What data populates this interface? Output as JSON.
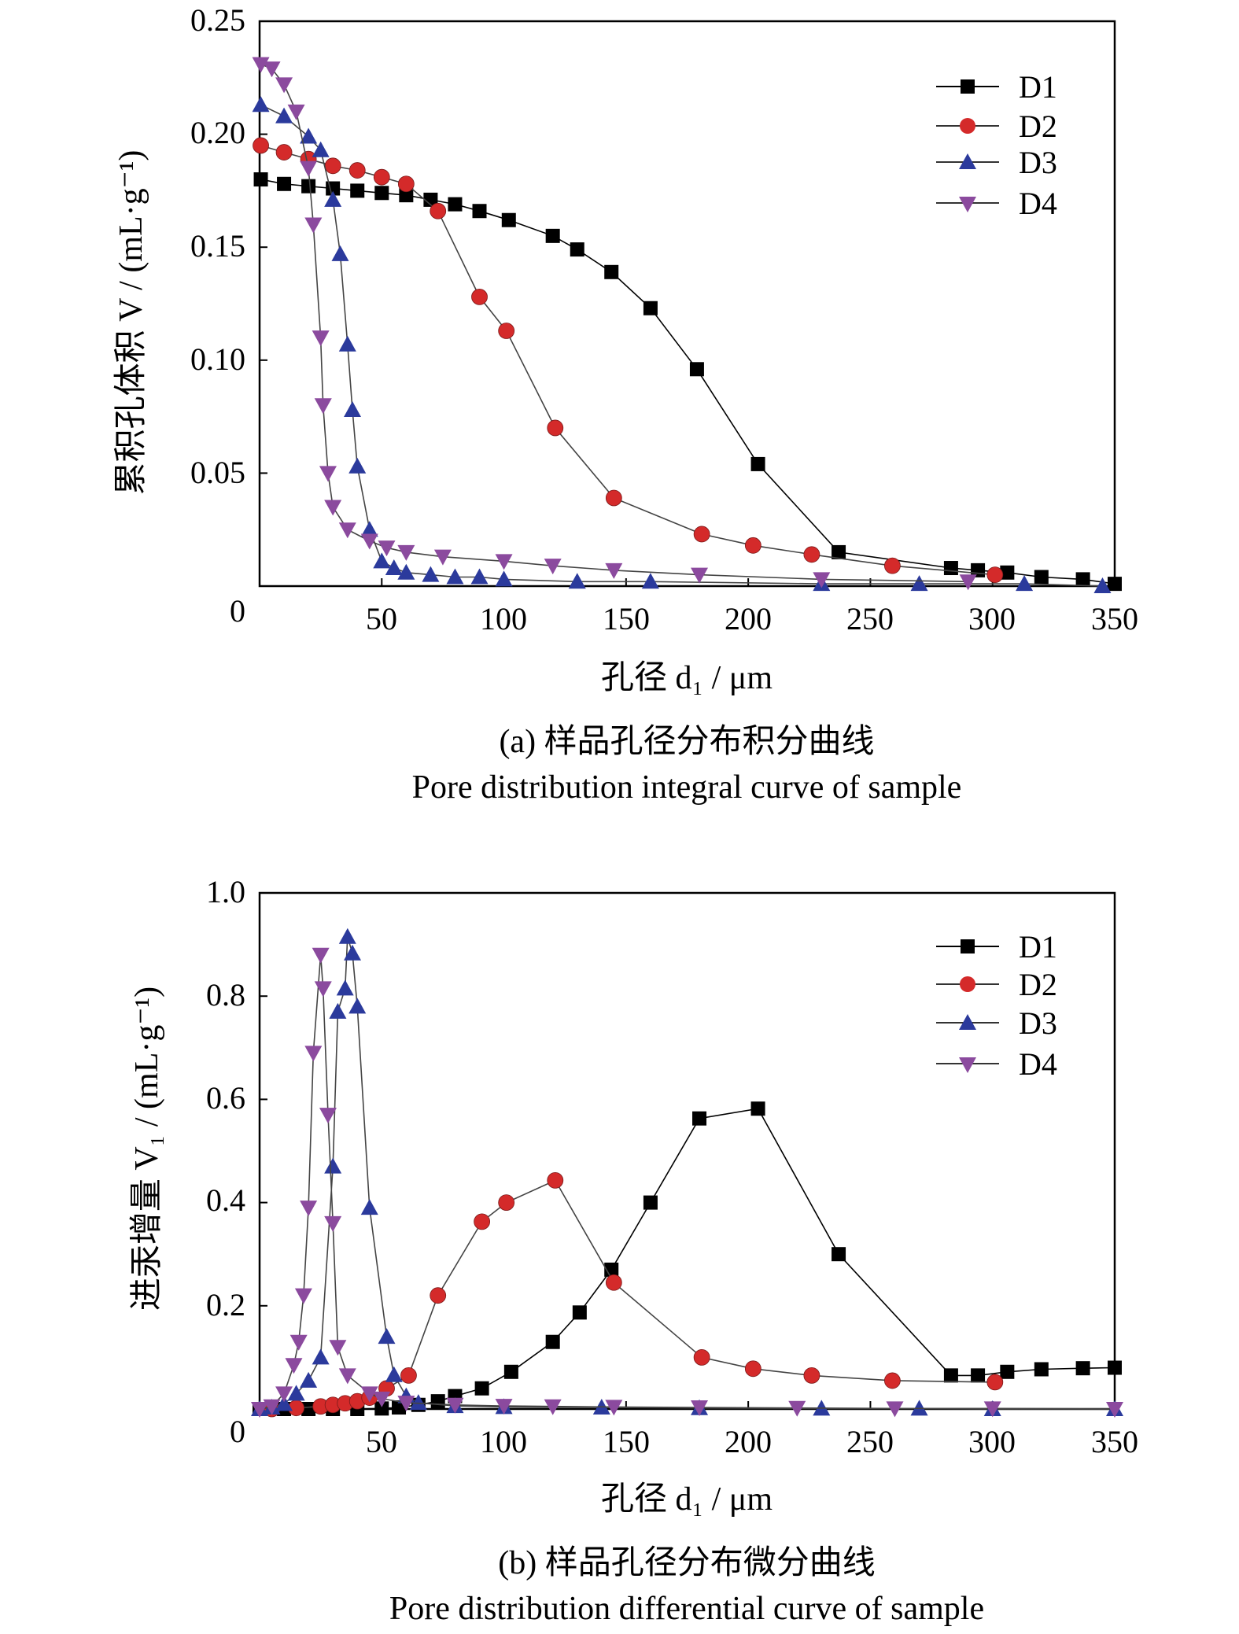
{
  "chart_data": [
    {
      "type": "line",
      "title": "",
      "caption_cn": "(a) 样品孔径分布积分曲线",
      "caption_en": "Pore distribution integral curve of sample",
      "xlabel": "孔径 d₁ / μm",
      "ylabel": "累积孔体积 V / (mL·g⁻¹)",
      "xlim": [
        0,
        350
      ],
      "ylim": [
        0,
        0.25
      ],
      "xticks": [
        "50",
        "100",
        "150",
        "200",
        "250",
        "300",
        "350"
      ],
      "yticks": [
        "0.05",
        "0.10",
        "0.15",
        "0.20",
        "0.25"
      ],
      "zero_label": "0",
      "legend_position": "top-right",
      "series": [
        {
          "name": "D1",
          "color": "#000000",
          "marker": "square",
          "x": [
            0.5,
            10,
            20,
            30,
            40,
            50,
            60,
            70,
            80,
            90,
            102,
            120,
            130,
            144,
            160,
            179,
            204,
            237,
            283,
            294,
            306,
            320,
            337,
            350
          ],
          "y": [
            0.18,
            0.178,
            0.177,
            0.176,
            0.175,
            0.174,
            0.173,
            0.171,
            0.169,
            0.166,
            0.162,
            0.155,
            0.149,
            0.139,
            0.123,
            0.096,
            0.054,
            0.015,
            0.008,
            0.007,
            0.006,
            0.004,
            0.003,
            0.001
          ]
        },
        {
          "name": "D2",
          "color": "#d42a2a",
          "marker": "circle",
          "x": [
            0.5,
            10,
            20,
            30,
            40,
            50,
            60,
            73,
            90,
            101,
            121,
            145,
            181,
            202,
            226,
            259,
            301
          ],
          "y": [
            0.195,
            0.192,
            0.189,
            0.186,
            0.184,
            0.181,
            0.178,
            0.166,
            0.128,
            0.113,
            0.07,
            0.039,
            0.023,
            0.018,
            0.014,
            0.009,
            0.005
          ]
        },
        {
          "name": "D3",
          "color": "#2b3a9c",
          "marker": "triangle-up",
          "x": [
            0.5,
            10,
            20,
            25,
            30,
            33,
            36,
            38,
            40,
            45,
            50,
            55,
            60,
            70,
            80,
            90,
            100,
            130,
            160,
            230,
            270,
            313,
            345
          ],
          "y": [
            0.213,
            0.208,
            0.199,
            0.193,
            0.171,
            0.147,
            0.107,
            0.078,
            0.053,
            0.025,
            0.011,
            0.008,
            0.006,
            0.005,
            0.004,
            0.004,
            0.003,
            0.002,
            0.002,
            0.001,
            0.001,
            0.001,
            0.0
          ]
        },
        {
          "name": "D4",
          "color": "#8b4a9e",
          "marker": "triangle-down",
          "x": [
            0.5,
            5,
            10,
            15,
            20,
            22,
            25,
            26,
            28,
            30,
            36,
            45,
            52,
            60,
            75,
            100,
            120,
            145,
            180,
            230,
            290
          ],
          "y": [
            0.231,
            0.229,
            0.222,
            0.21,
            0.185,
            0.16,
            0.11,
            0.08,
            0.05,
            0.035,
            0.025,
            0.02,
            0.017,
            0.015,
            0.013,
            0.011,
            0.009,
            0.007,
            0.005,
            0.003,
            0.002
          ]
        }
      ]
    },
    {
      "type": "line",
      "title": "",
      "caption_cn": "(b) 样品孔径分布微分曲线",
      "caption_en": "Pore distribution differential curve of sample",
      "xlabel": "孔径 d₁ / μm",
      "ylabel": "进汞增量 V₁ / (mL·g⁻¹)",
      "xlim": [
        0,
        350
      ],
      "ylim": [
        0,
        1.0
      ],
      "xticks": [
        "50",
        "100",
        "150",
        "200",
        "250",
        "300",
        "350"
      ],
      "yticks": [
        "0.2",
        "0.4",
        "0.6",
        "0.8",
        "1.0"
      ],
      "zero_label": "0",
      "legend_position": "top-right",
      "series": [
        {
          "name": "D1",
          "color": "#000000",
          "marker": "square",
          "x": [
            0,
            10,
            20,
            30,
            40,
            50,
            57,
            65,
            73,
            80,
            91,
            103,
            120,
            131,
            144,
            160,
            180,
            204,
            237,
            283,
            294,
            306,
            320,
            337,
            350
          ],
          "y": [
            0.0,
            0.0,
            0.0,
            0.0,
            0.0,
            0.001,
            0.003,
            0.008,
            0.015,
            0.025,
            0.04,
            0.072,
            0.13,
            0.187,
            0.27,
            0.4,
            0.563,
            0.582,
            0.3,
            0.065,
            0.065,
            0.072,
            0.077,
            0.079,
            0.08
          ]
        },
        {
          "name": "D2",
          "color": "#d42a2a",
          "marker": "circle",
          "x": [
            5,
            15,
            25,
            30,
            35,
            40,
            45,
            52,
            61,
            73,
            91,
            101,
            121,
            145,
            181,
            202,
            226,
            259,
            301
          ],
          "y": [
            0.0,
            0.002,
            0.005,
            0.008,
            0.011,
            0.015,
            0.022,
            0.04,
            0.065,
            0.22,
            0.363,
            0.4,
            0.443,
            0.245,
            0.1,
            0.078,
            0.065,
            0.055,
            0.052
          ]
        },
        {
          "name": "D3",
          "color": "#2b3a9c",
          "marker": "triangle-up",
          "x": [
            0,
            5,
            10,
            15,
            20,
            25,
            30,
            32,
            35,
            36,
            38,
            40,
            45,
            52,
            55,
            60,
            65,
            80,
            100,
            140,
            180,
            230,
            270,
            300,
            350
          ],
          "y": [
            0.0,
            0.003,
            0.01,
            0.03,
            0.055,
            0.1,
            0.47,
            0.77,
            0.815,
            0.915,
            0.883,
            0.78,
            0.39,
            0.14,
            0.066,
            0.025,
            0.012,
            0.006,
            0.004,
            0.003,
            0.002,
            0.001,
            0.001,
            0.0,
            0.0
          ]
        },
        {
          "name": "D4",
          "color": "#8b4a9e",
          "marker": "triangle-down",
          "x": [
            0,
            5,
            10,
            14,
            16,
            18,
            20,
            22,
            25,
            26,
            28,
            30,
            32,
            36,
            45,
            50,
            60,
            80,
            100,
            120,
            145,
            180,
            220,
            260,
            300,
            350
          ],
          "y": [
            0.0,
            0.005,
            0.03,
            0.085,
            0.13,
            0.22,
            0.39,
            0.69,
            0.88,
            0.815,
            0.57,
            0.36,
            0.12,
            0.065,
            0.03,
            0.02,
            0.012,
            0.008,
            0.006,
            0.005,
            0.004,
            0.003,
            0.002,
            0.001,
            0.001,
            0.0
          ]
        }
      ]
    }
  ]
}
